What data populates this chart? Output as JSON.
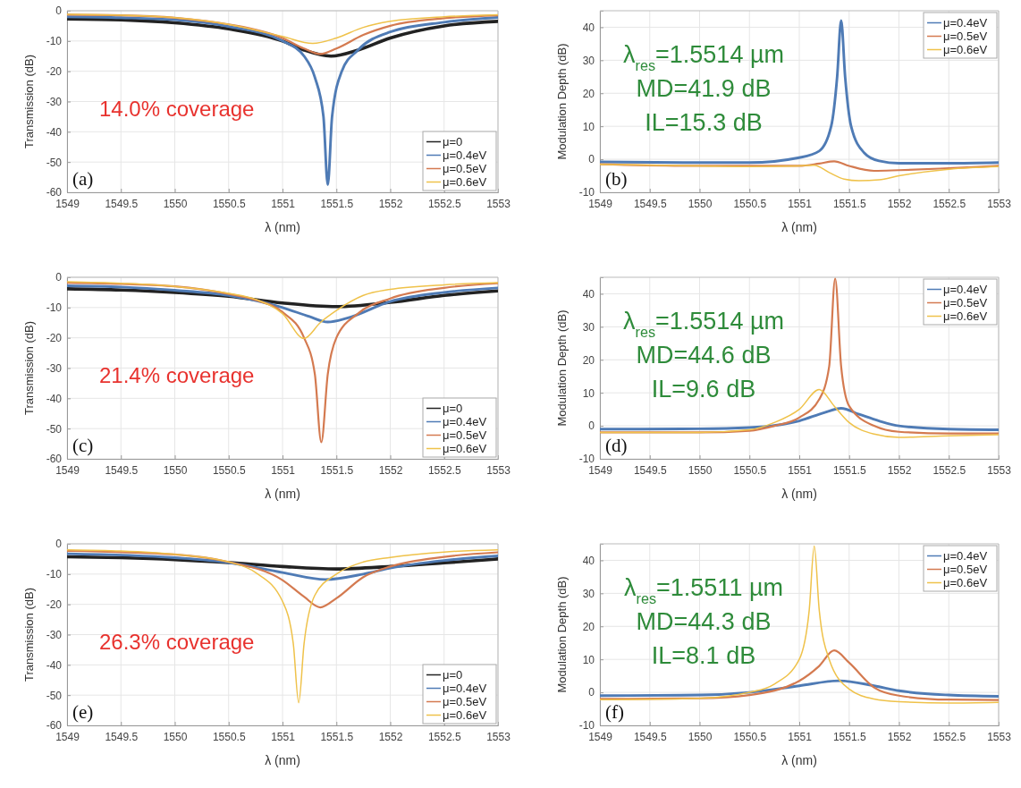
{
  "chart_data": [
    {
      "type": "line",
      "xlabel": "λ (nm)",
      "ylabel": "Transmission (dB)",
      "xlim": [
        1549,
        1553
      ],
      "ylim": [
        -60,
        0
      ],
      "xticks": [
        1549,
        1549.5,
        1550,
        1550.5,
        1551,
        1551.5,
        1552,
        1552.5,
        1553
      ],
      "yticks": [
        -60,
        -50,
        -40,
        -30,
        -20,
        -10,
        0
      ],
      "grid": true,
      "legend": "bottom right",
      "annotations": [
        "(a)",
        "14.0% coverage"
      ],
      "series": [
        {
          "name": "μ=0",
          "color": "#222222",
          "x": [
            1549,
            1549.5,
            1550,
            1550.5,
            1551,
            1551.2,
            1551.45,
            1551.7,
            1552,
            1552.5,
            1553
          ],
          "values": [
            -2.7,
            -3,
            -4,
            -6,
            -10,
            -13,
            -15,
            -13,
            -9,
            -5,
            -3.5
          ]
        },
        {
          "name": "μ=0.4eV",
          "color": "#4f7bb5",
          "x": [
            1549,
            1549.5,
            1550,
            1550.5,
            1551,
            1551.2,
            1551.3,
            1551.38,
            1551.42,
            1551.46,
            1551.55,
            1551.7,
            1552,
            1552.5,
            1553
          ],
          "values": [
            -2,
            -2.3,
            -3,
            -5.2,
            -10,
            -15,
            -22,
            -35,
            -57.5,
            -35,
            -20,
            -13,
            -7,
            -3.8,
            -2.2
          ]
        },
        {
          "name": "μ=0.5eV",
          "color": "#d47a50",
          "x": [
            1549,
            1549.5,
            1550,
            1550.5,
            1551,
            1551.2,
            1551.35,
            1551.5,
            1551.75,
            1552,
            1552.5,
            1553
          ],
          "values": [
            -1.3,
            -1.5,
            -2.3,
            -4.5,
            -9,
            -12.5,
            -14.3,
            -12.5,
            -8,
            -5,
            -2.5,
            -1.5
          ]
        },
        {
          "name": "μ=0.6eV",
          "color": "#efc24a",
          "x": [
            1549,
            1549.5,
            1550,
            1550.5,
            1551,
            1551.28,
            1551.5,
            1551.75,
            1552,
            1552.5,
            1553
          ],
          "values": [
            -1.2,
            -1.5,
            -2.3,
            -4.5,
            -8.5,
            -10.8,
            -9,
            -5.5,
            -3.5,
            -2,
            -1.3
          ]
        }
      ]
    },
    {
      "type": "line",
      "xlabel": "λ (nm)",
      "ylabel": "Modulation Depth (dB)",
      "xlim": [
        1549,
        1553
      ],
      "ylim": [
        -10,
        45
      ],
      "xticks": [
        1549,
        1549.5,
        1550,
        1550.5,
        1551,
        1551.5,
        1552,
        1552.5,
        1553
      ],
      "yticks": [
        -10,
        0,
        10,
        20,
        30,
        40
      ],
      "grid": true,
      "legend": "top right",
      "annotations": [
        "(b)",
        "λ$_{res}$=1.5514 µm",
        "MD=41.9 dB",
        "IL=15.3 dB"
      ],
      "series": [
        {
          "name": "μ=0.4eV",
          "color": "#4f7bb5",
          "x": [
            1549,
            1550,
            1550.5,
            1551,
            1551.2,
            1551.32,
            1551.38,
            1551.42,
            1551.46,
            1551.52,
            1551.65,
            1551.8,
            1552,
            1552.5,
            1553
          ],
          "values": [
            -0.8,
            -1,
            -1,
            0.5,
            2.5,
            10,
            25,
            42,
            25,
            10,
            2,
            -0.5,
            -1.2,
            -1.2,
            -1
          ]
        },
        {
          "name": "μ=0.5eV",
          "color": "#d47a50",
          "x": [
            1549,
            1550,
            1550.5,
            1551,
            1551.2,
            1551.35,
            1551.5,
            1551.75,
            1552,
            1552.5,
            1553
          ],
          "values": [
            -1.5,
            -2,
            -2,
            -2,
            -1.3,
            -0.6,
            -2,
            -3.5,
            -3.3,
            -2.7,
            -2
          ]
        },
        {
          "name": "μ=0.6eV",
          "color": "#efc24a",
          "x": [
            1549,
            1550,
            1550.5,
            1551,
            1551.15,
            1551.3,
            1551.45,
            1551.6,
            1551.8,
            1552,
            1552.5,
            1553
          ],
          "values": [
            -1.5,
            -2,
            -2.2,
            -2,
            -1.8,
            -4,
            -6,
            -6.5,
            -6.2,
            -5,
            -3,
            -2.2
          ]
        }
      ]
    },
    {
      "type": "line",
      "xlabel": "λ (nm)",
      "ylabel": "Transmission (dB)",
      "xlim": [
        1549,
        1553
      ],
      "ylim": [
        -60,
        0
      ],
      "xticks": [
        1549,
        1549.5,
        1550,
        1550.5,
        1551,
        1551.5,
        1552,
        1552.5,
        1553
      ],
      "yticks": [
        -60,
        -50,
        -40,
        -30,
        -20,
        -10,
        0
      ],
      "grid": true,
      "legend": "bottom right",
      "annotations": [
        "(c)",
        "21.4% coverage"
      ],
      "series": [
        {
          "name": "μ=0",
          "color": "#222222",
          "x": [
            1549,
            1549.5,
            1550,
            1550.5,
            1551,
            1551.5,
            1552,
            1552.5,
            1553
          ],
          "values": [
            -3.8,
            -4.2,
            -5,
            -6.3,
            -8.5,
            -9.7,
            -8.3,
            -6,
            -4.5
          ]
        },
        {
          "name": "μ=0.4eV",
          "color": "#4f7bb5",
          "x": [
            1549,
            1549.5,
            1550,
            1550.5,
            1551,
            1551.25,
            1551.42,
            1551.6,
            1552,
            1552.5,
            1553
          ],
          "values": [
            -2.8,
            -3.2,
            -4.3,
            -6,
            -10,
            -13,
            -14.8,
            -13.5,
            -8,
            -5,
            -3.5
          ]
        },
        {
          "name": "μ=0.5eV",
          "color": "#d47a50",
          "x": [
            1549,
            1549.5,
            1550,
            1550.5,
            1550.75,
            1551,
            1551.2,
            1551.3,
            1551.36,
            1551.42,
            1551.5,
            1551.7,
            1552,
            1552.5,
            1553
          ],
          "values": [
            -1.8,
            -2.2,
            -3,
            -5.5,
            -7.5,
            -11.5,
            -20,
            -32,
            -54.5,
            -32,
            -20,
            -12,
            -7,
            -3.5,
            -2
          ]
        },
        {
          "name": "μ=0.6eV",
          "color": "#efc24a",
          "x": [
            1549,
            1549.5,
            1550,
            1550.5,
            1550.75,
            1551,
            1551.2,
            1551.35,
            1551.5,
            1551.75,
            1552,
            1552.5,
            1553
          ],
          "values": [
            -1.5,
            -2,
            -3,
            -5.3,
            -7.3,
            -12,
            -20.2,
            -15,
            -11,
            -6,
            -4,
            -2.5,
            -1.8
          ]
        }
      ]
    },
    {
      "type": "line",
      "xlabel": "λ (nm)",
      "ylabel": "Modulation Depth (dB)",
      "xlim": [
        1549,
        1553
      ],
      "ylim": [
        -10,
        45
      ],
      "xticks": [
        1549,
        1549.5,
        1550,
        1550.5,
        1551,
        1551.5,
        1552,
        1552.5,
        1553
      ],
      "yticks": [
        -10,
        0,
        10,
        20,
        30,
        40
      ],
      "grid": true,
      "legend": "top right",
      "annotations": [
        "(d)",
        "λ$_{res}$=1.5514 µm",
        "MD=44.6 dB",
        "IL=9.6 dB"
      ],
      "series": [
        {
          "name": "μ=0.4eV",
          "color": "#4f7bb5",
          "x": [
            1549,
            1550,
            1550.5,
            1551,
            1551.25,
            1551.42,
            1551.6,
            1551.8,
            1552,
            1552.5,
            1553
          ],
          "values": [
            -1,
            -0.9,
            -0.5,
            1.5,
            4,
            5.3,
            3.5,
            1.5,
            0,
            -1,
            -1.2
          ]
        },
        {
          "name": "μ=0.5eV",
          "color": "#d47a50",
          "x": [
            1549,
            1550,
            1550.5,
            1550.75,
            1551,
            1551.2,
            1551.3,
            1551.36,
            1551.42,
            1551.5,
            1551.75,
            1552,
            1552.5,
            1553
          ],
          "values": [
            -2,
            -2,
            -1.5,
            0,
            2.5,
            8,
            18,
            44.6,
            18,
            6,
            0,
            -1.8,
            -2.3,
            -2.3
          ]
        },
        {
          "name": "μ=0.6eV",
          "color": "#efc24a",
          "x": [
            1549,
            1550,
            1550.5,
            1550.75,
            1551,
            1551.2,
            1551.35,
            1551.5,
            1551.75,
            1552,
            1552.5,
            1553
          ],
          "values": [
            -2,
            -2,
            -1.2,
            1,
            5,
            11,
            6,
            1,
            -2.5,
            -3.5,
            -3,
            -2.7
          ]
        }
      ]
    },
    {
      "type": "line",
      "xlabel": "λ (nm)",
      "ylabel": "Transmission (dB)",
      "xlim": [
        1549,
        1553
      ],
      "ylim": [
        -60,
        0
      ],
      "xticks": [
        1549,
        1549.5,
        1550,
        1550.5,
        1551,
        1551.5,
        1552,
        1552.5,
        1553
      ],
      "yticks": [
        -60,
        -50,
        -40,
        -30,
        -20,
        -10,
        0
      ],
      "grid": true,
      "legend": "bottom right",
      "annotations": [
        "(e)",
        "26.3% coverage"
      ],
      "series": [
        {
          "name": "μ=0",
          "color": "#222222",
          "x": [
            1549,
            1549.5,
            1550,
            1550.5,
            1551,
            1551.5,
            1552,
            1552.5,
            1553
          ],
          "values": [
            -4.3,
            -4.6,
            -5.2,
            -6.2,
            -7.5,
            -8.3,
            -7.5,
            -6.3,
            -5
          ]
        },
        {
          "name": "μ=0.4eV",
          "color": "#4f7bb5",
          "x": [
            1549,
            1550,
            1550.5,
            1551,
            1551.4,
            1551.75,
            1552,
            1552.5,
            1553
          ],
          "values": [
            -3.3,
            -4.6,
            -6.2,
            -9.5,
            -11.8,
            -10,
            -8,
            -5.5,
            -4
          ]
        },
        {
          "name": "μ=0.5eV",
          "color": "#d47a50",
          "x": [
            1549,
            1550,
            1550.5,
            1551,
            1551.2,
            1551.35,
            1551.5,
            1551.75,
            1552,
            1552.5,
            1553
          ],
          "values": [
            -2.3,
            -3.5,
            -6,
            -12,
            -17.5,
            -21,
            -18,
            -11,
            -7.5,
            -4.3,
            -2.8
          ]
        },
        {
          "name": "μ=0.6eV",
          "color": "#efc24a",
          "x": [
            1549,
            1549.5,
            1550,
            1550.5,
            1550.75,
            1551,
            1551.1,
            1551.15,
            1551.2,
            1551.3,
            1551.5,
            1551.75,
            1552,
            1552.5,
            1553
          ],
          "values": [
            -2,
            -2.4,
            -3.5,
            -6,
            -9.5,
            -19,
            -33,
            -52.5,
            -33,
            -17,
            -10,
            -6,
            -4.5,
            -2.7,
            -2
          ]
        }
      ]
    },
    {
      "type": "line",
      "xlabel": "λ (nm)",
      "ylabel": "Modulation Depth (dB)",
      "xlim": [
        1549,
        1553
      ],
      "ylim": [
        -10,
        45
      ],
      "xticks": [
        1549,
        1549.5,
        1550,
        1550.5,
        1551,
        1551.5,
        1552,
        1552.5,
        1553
      ],
      "yticks": [
        -10,
        0,
        10,
        20,
        30,
        40
      ],
      "grid": true,
      "legend": "top right",
      "annotations": [
        "(f)",
        "λ$_{res}$=1.5511 µm",
        "MD=44.3 dB",
        "IL=8.1 dB"
      ],
      "series": [
        {
          "name": "μ=0.4eV",
          "color": "#4f7bb5",
          "x": [
            1549,
            1550,
            1550.5,
            1551,
            1551.4,
            1551.75,
            1552,
            1552.5,
            1553
          ],
          "values": [
            -1,
            -0.8,
            0,
            2,
            3.5,
            2,
            0.5,
            -0.8,
            -1.2
          ]
        },
        {
          "name": "μ=0.5eV",
          "color": "#d47a50",
          "x": [
            1549,
            1550,
            1550.5,
            1551,
            1551.2,
            1551.35,
            1551.5,
            1551.75,
            1552,
            1552.5,
            1553
          ],
          "values": [
            -2,
            -1.8,
            -0.8,
            3.5,
            8,
            12.7,
            9,
            1.5,
            -1,
            -2.2,
            -2.3
          ]
        },
        {
          "name": "μ=0.6eV",
          "color": "#efc24a",
          "x": [
            1549,
            1550,
            1550.5,
            1550.75,
            1551,
            1551.1,
            1551.15,
            1551.2,
            1551.3,
            1551.5,
            1551.75,
            1552,
            1552.5,
            1553
          ],
          "values": [
            -2.2,
            -1.8,
            0,
            2.5,
            10,
            25,
            44.3,
            25,
            10,
            1,
            -2,
            -2.8,
            -3.2,
            -3
          ]
        }
      ]
    }
  ]
}
